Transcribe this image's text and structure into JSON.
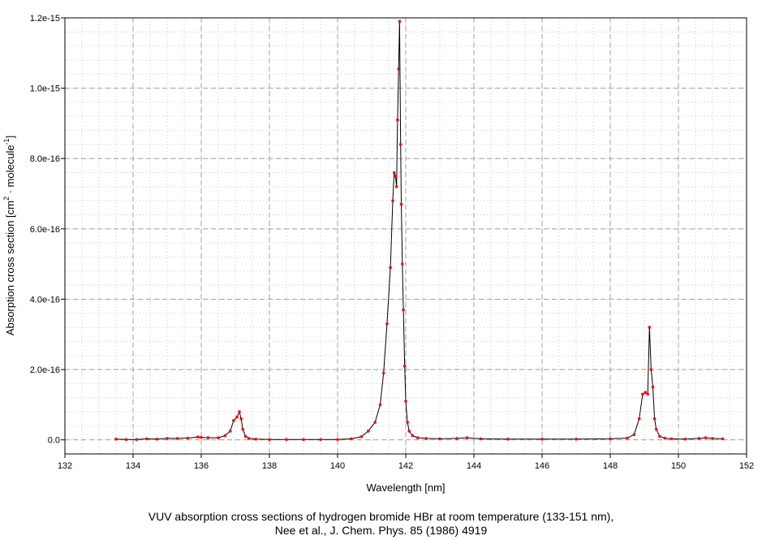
{
  "chart_data": {
    "type": "line",
    "xlabel": "Wavelength [nm]",
    "ylabel_parts": [
      "Absorption cross section [cm",
      "2",
      " · molecule",
      "-1",
      "]"
    ],
    "xlim": [
      132,
      152
    ],
    "ylim": [
      -4e-17,
      1.2e-15
    ],
    "x_ticks": [
      132,
      134,
      136,
      138,
      140,
      142,
      144,
      146,
      148,
      150,
      152
    ],
    "x_tick_labels": [
      "132",
      "134",
      "136",
      "138",
      "140",
      "142",
      "144",
      "146",
      "148",
      "150",
      "152"
    ],
    "y_ticks": [
      0,
      2e-16,
      4e-16,
      6e-16,
      8e-16,
      1e-15,
      1.2e-15
    ],
    "y_tick_labels": [
      "0.0",
      "2.0e-16",
      "4.0e-16",
      "6.0e-16",
      "8.0e-16",
      "1.0e-15",
      "1.2e-15"
    ],
    "grid": true,
    "series": [
      {
        "line_color": "#000000",
        "marker_color": "#ff0000",
        "x": [
          133.5,
          133.8,
          134.1,
          134.4,
          134.7,
          135.0,
          135.3,
          135.6,
          135.9,
          136.0,
          136.2,
          136.5,
          136.7,
          136.85,
          136.95,
          137.05,
          137.12,
          137.17,
          137.22,
          137.3,
          137.4,
          137.6,
          138.0,
          138.5,
          139.0,
          139.5,
          140.0,
          140.4,
          140.7,
          140.9,
          141.1,
          141.25,
          141.35,
          141.45,
          141.55,
          141.62,
          141.66,
          141.7,
          141.73,
          141.76,
          141.79,
          141.82,
          141.85,
          141.87,
          141.9,
          141.93,
          141.97,
          142.0,
          142.05,
          142.1,
          142.2,
          142.35,
          142.6,
          143.0,
          143.5,
          143.8,
          144.2,
          145.0,
          146.0,
          147.0,
          148.0,
          148.5,
          148.7,
          148.85,
          148.95,
          149.03,
          149.1,
          149.15,
          149.2,
          149.25,
          149.3,
          149.35,
          149.45,
          149.6,
          149.8,
          150.2,
          150.6,
          150.8,
          151.0,
          151.3
        ],
        "y": [
          2e-18,
          1e-18,
          1e-18,
          3e-18,
          2e-18,
          4e-18,
          4e-18,
          5e-18,
          8e-18,
          7e-18,
          6e-18,
          6e-18,
          1.2e-17,
          2.5e-17,
          5.5e-17,
          6.5e-17,
          8e-17,
          6e-17,
          3e-17,
          1e-17,
          4e-18,
          2e-18,
          1e-18,
          1e-18,
          1e-18,
          1e-18,
          1e-18,
          3e-18,
          9e-18,
          2.5e-17,
          5e-17,
          1e-16,
          1.9e-16,
          3.3e-16,
          4.9e-16,
          6.8e-16,
          7.6e-16,
          7.5e-16,
          7.2e-16,
          9.1e-16,
          1.055e-15,
          1.19e-15,
          8.4e-16,
          6.7e-16,
          5e-16,
          3.7e-16,
          2.1e-16,
          1.1e-16,
          5e-17,
          2.5e-17,
          1.2e-17,
          6e-18,
          4e-18,
          3e-18,
          4e-18,
          6e-18,
          3e-18,
          2e-18,
          2e-18,
          2e-18,
          3e-18,
          5e-18,
          1.5e-17,
          6e-17,
          1.3e-16,
          1.35e-16,
          1.3e-16,
          3.2e-16,
          2e-16,
          1.5e-16,
          6e-17,
          3e-17,
          1e-17,
          5e-18,
          3e-18,
          2e-18,
          4e-18,
          6e-18,
          4e-18,
          3e-18
        ]
      }
    ]
  },
  "caption": {
    "line1": "VUV absorption cross sections of hydrogen bromide HBr at room temperature (133-151 nm),",
    "line2": "Nee et al., J. Chem. Phys. 85 (1986) 4919"
  }
}
